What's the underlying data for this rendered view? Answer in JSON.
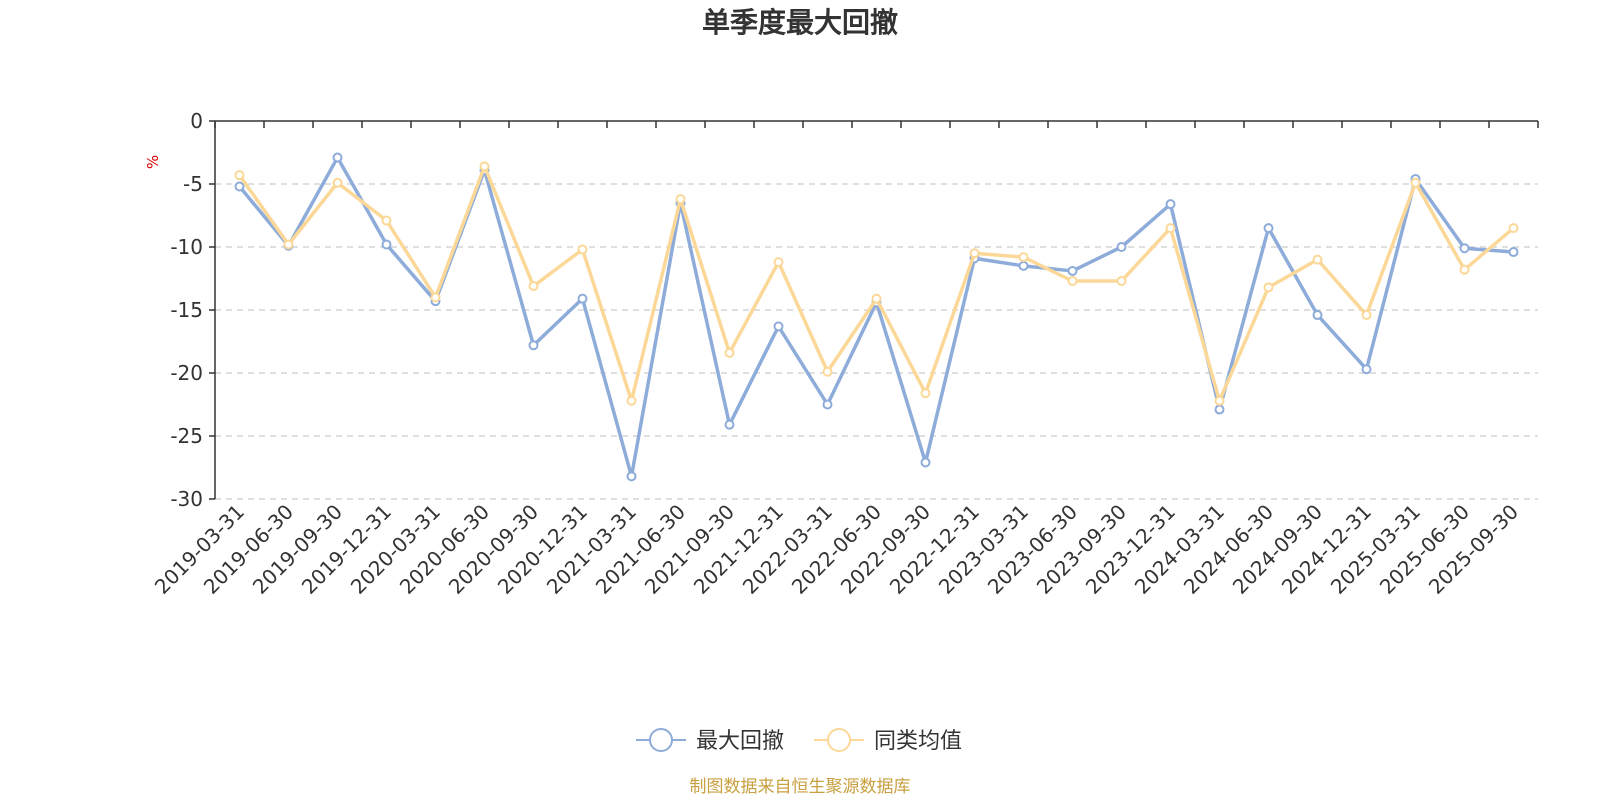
{
  "chart_data": {
    "type": "line",
    "title": "单季度最大回撤",
    "ylabel": "%",
    "ylim": [
      -30,
      0
    ],
    "yticks": [
      0,
      -5,
      -10,
      -15,
      -20,
      -25,
      -30
    ],
    "grid": true,
    "legend_position": "bottom",
    "categories": [
      "2019-03-31",
      "2019-06-30",
      "2019-09-30",
      "2019-12-31",
      "2020-03-31",
      "2020-06-30",
      "2020-09-30",
      "2020-12-31",
      "2021-03-31",
      "2021-06-30",
      "2021-09-30",
      "2021-12-31",
      "2022-03-31",
      "2022-06-30",
      "2022-09-30",
      "2022-12-31",
      "2023-03-31",
      "2023-06-30",
      "2023-09-30",
      "2023-12-31",
      "2024-03-31",
      "2024-06-30",
      "2024-09-30",
      "2024-12-31",
      "2025-03-31",
      "2025-06-30",
      "2025-09-30"
    ],
    "series": [
      {
        "name": "最大回撤",
        "color": "#8eacd9",
        "values": [
          -5.2,
          -9.9,
          -2.9,
          -9.8,
          -14.3,
          -3.9,
          -17.8,
          -14.1,
          -28.2,
          -6.5,
          -24.1,
          -16.3,
          -22.5,
          -14.4,
          -27.1,
          -10.9,
          -11.5,
          -11.9,
          -10.0,
          -6.6,
          -22.9,
          -8.5,
          -15.4,
          -19.7,
          -4.6,
          -10.1,
          -10.4
        ]
      },
      {
        "name": "同类均值",
        "color": "#fcd898",
        "values": [
          -4.3,
          -9.8,
          -4.9,
          -7.9,
          -14.0,
          -3.6,
          -13.1,
          -10.2,
          -22.2,
          -6.2,
          -18.4,
          -11.2,
          -19.9,
          -14.1,
          -21.6,
          -10.5,
          -10.8,
          -12.7,
          -12.7,
          -8.5,
          -22.2,
          -13.2,
          -11.0,
          -15.4,
          -4.9,
          -11.8,
          -8.5
        ]
      }
    ]
  },
  "source_note": "制图数据来自恒生聚源数据库"
}
